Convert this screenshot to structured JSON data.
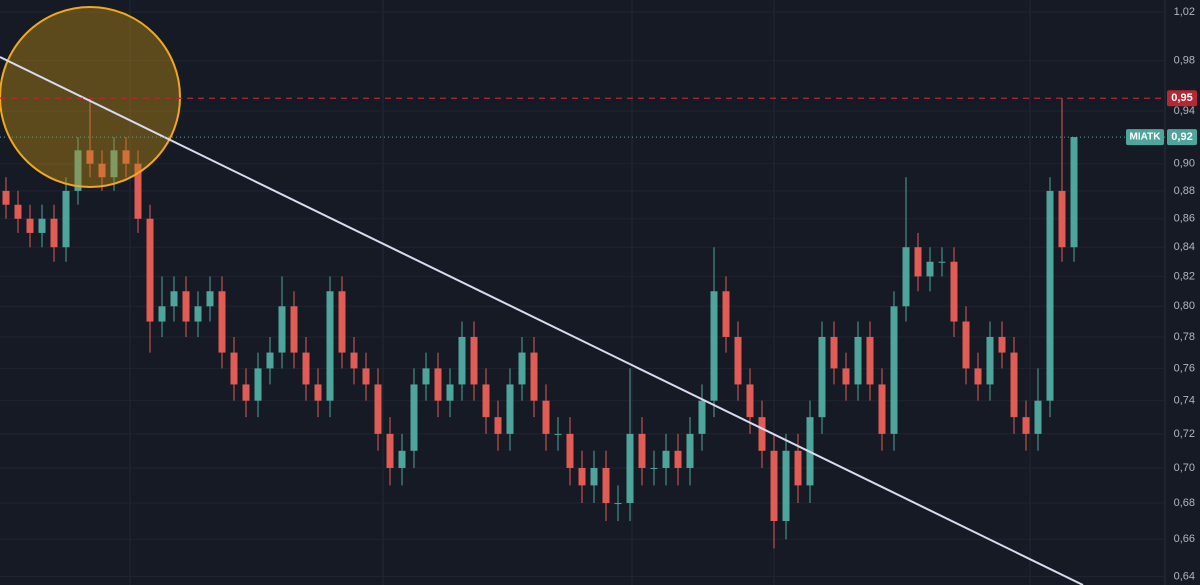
{
  "chart_data": {
    "type": "candlestick",
    "symbol": "MIATK",
    "log_scale": true,
    "ylim": [
      0.6355,
      1.0303
    ],
    "yticks": [
      {
        "value": 1.02,
        "label": "1,02"
      },
      {
        "value": 0.98,
        "label": "0,98"
      },
      {
        "value": 0.94,
        "label": "0,94"
      },
      {
        "value": 0.9,
        "label": "0,90"
      },
      {
        "value": 0.88,
        "label": "0,88"
      },
      {
        "value": 0.86,
        "label": "0,86"
      },
      {
        "value": 0.84,
        "label": "0,84"
      },
      {
        "value": 0.82,
        "label": "0,82"
      },
      {
        "value": 0.8,
        "label": "0,80"
      },
      {
        "value": 0.78,
        "label": "0,78"
      },
      {
        "value": 0.76,
        "label": "0,76"
      },
      {
        "value": 0.74,
        "label": "0,74"
      },
      {
        "value": 0.72,
        "label": "0,72"
      },
      {
        "value": 0.7,
        "label": "0,70"
      },
      {
        "value": 0.68,
        "label": "0,68"
      },
      {
        "value": 0.66,
        "label": "0,66"
      },
      {
        "value": 0.64,
        "label": "0,64"
      }
    ],
    "up_color": "#4fa59c",
    "down_color": "#e05c55",
    "last_price": {
      "value": 0.92,
      "label": "0,92"
    },
    "alert_line": {
      "value": 0.95,
      "label": "0,95",
      "color": "#b22833"
    },
    "open": [
      0.88,
      0.87,
      0.86,
      0.85,
      0.86,
      0.84,
      0.88,
      0.91,
      0.9,
      0.89,
      0.91,
      0.9,
      0.86,
      0.79,
      0.8,
      0.81,
      0.79,
      0.8,
      0.81,
      0.77,
      0.75,
      0.74,
      0.76,
      0.77,
      0.8,
      0.77,
      0.75,
      0.74,
      0.81,
      0.77,
      0.76,
      0.75,
      0.72,
      0.7,
      0.71,
      0.75,
      0.76,
      0.74,
      0.75,
      0.78,
      0.75,
      0.73,
      0.72,
      0.75,
      0.77,
      0.74,
      0.72,
      0.72,
      0.7,
      0.69,
      0.7,
      0.68,
      0.68,
      0.72,
      0.7,
      0.7,
      0.71,
      0.7,
      0.72,
      0.74,
      0.81,
      0.78,
      0.75,
      0.73,
      0.71,
      0.67,
      0.71,
      0.69,
      0.73,
      0.78,
      0.76,
      0.75,
      0.78,
      0.75,
      0.72,
      0.8,
      0.84,
      0.82,
      0.83,
      0.83,
      0.79,
      0.76,
      0.75,
      0.78,
      0.77,
      0.73,
      0.72,
      0.74,
      0.88,
      0.84
    ],
    "high": [
      0.89,
      0.88,
      0.87,
      0.87,
      0.87,
      0.89,
      0.92,
      0.95,
      0.91,
      0.92,
      0.92,
      0.91,
      0.87,
      0.82,
      0.82,
      0.82,
      0.81,
      0.82,
      0.82,
      0.78,
      0.76,
      0.77,
      0.78,
      0.82,
      0.81,
      0.78,
      0.76,
      0.82,
      0.82,
      0.78,
      0.77,
      0.76,
      0.73,
      0.72,
      0.76,
      0.77,
      0.77,
      0.76,
      0.79,
      0.79,
      0.76,
      0.74,
      0.76,
      0.78,
      0.78,
      0.75,
      0.73,
      0.73,
      0.71,
      0.71,
      0.71,
      0.69,
      0.76,
      0.73,
      0.71,
      0.72,
      0.72,
      0.73,
      0.75,
      0.84,
      0.82,
      0.79,
      0.76,
      0.74,
      0.72,
      0.72,
      0.72,
      0.74,
      0.79,
      0.79,
      0.77,
      0.79,
      0.79,
      0.76,
      0.81,
      0.89,
      0.85,
      0.84,
      0.84,
      0.84,
      0.8,
      0.77,
      0.79,
      0.79,
      0.78,
      0.74,
      0.76,
      0.89,
      0.95,
      0.92
    ],
    "low": [
      0.86,
      0.85,
      0.84,
      0.84,
      0.83,
      0.83,
      0.87,
      0.89,
      0.88,
      0.88,
      0.89,
      0.85,
      0.77,
      0.78,
      0.79,
      0.78,
      0.78,
      0.79,
      0.76,
      0.74,
      0.73,
      0.73,
      0.75,
      0.76,
      0.76,
      0.74,
      0.73,
      0.73,
      0.76,
      0.75,
      0.74,
      0.71,
      0.69,
      0.69,
      0.7,
      0.74,
      0.73,
      0.73,
      0.74,
      0.74,
      0.72,
      0.71,
      0.71,
      0.74,
      0.73,
      0.71,
      0.71,
      0.69,
      0.68,
      0.68,
      0.67,
      0.67,
      0.67,
      0.69,
      0.69,
      0.69,
      0.69,
      0.69,
      0.71,
      0.73,
      0.77,
      0.74,
      0.72,
      0.7,
      0.655,
      0.66,
      0.68,
      0.68,
      0.72,
      0.75,
      0.74,
      0.74,
      0.74,
      0.71,
      0.71,
      0.79,
      0.81,
      0.81,
      0.82,
      0.78,
      0.75,
      0.74,
      0.74,
      0.76,
      0.72,
      0.71,
      0.71,
      0.73,
      0.83,
      0.83
    ],
    "close": [
      0.87,
      0.86,
      0.85,
      0.86,
      0.84,
      0.88,
      0.91,
      0.9,
      0.89,
      0.91,
      0.9,
      0.86,
      0.79,
      0.8,
      0.81,
      0.79,
      0.8,
      0.81,
      0.77,
      0.75,
      0.74,
      0.76,
      0.77,
      0.8,
      0.77,
      0.75,
      0.74,
      0.81,
      0.77,
      0.76,
      0.75,
      0.72,
      0.7,
      0.71,
      0.75,
      0.76,
      0.74,
      0.75,
      0.78,
      0.75,
      0.73,
      0.72,
      0.75,
      0.77,
      0.74,
      0.72,
      0.72,
      0.7,
      0.69,
      0.7,
      0.68,
      0.68,
      0.72,
      0.7,
      0.7,
      0.71,
      0.7,
      0.72,
      0.74,
      0.81,
      0.78,
      0.75,
      0.73,
      0.71,
      0.67,
      0.71,
      0.69,
      0.73,
      0.78,
      0.76,
      0.75,
      0.78,
      0.75,
      0.72,
      0.8,
      0.84,
      0.82,
      0.83,
      0.83,
      0.79,
      0.76,
      0.75,
      0.78,
      0.77,
      0.73,
      0.72,
      0.74,
      0.88,
      0.84,
      0.92
    ]
  }
}
